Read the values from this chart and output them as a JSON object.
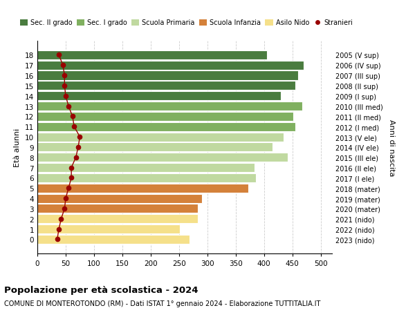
{
  "ages": [
    18,
    17,
    16,
    15,
    14,
    13,
    12,
    11,
    10,
    9,
    8,
    7,
    6,
    5,
    4,
    3,
    2,
    1,
    0
  ],
  "years": [
    "2005 (V sup)",
    "2006 (IV sup)",
    "2007 (III sup)",
    "2008 (II sup)",
    "2009 (I sup)",
    "2010 (III med)",
    "2011 (II med)",
    "2012 (I med)",
    "2013 (V ele)",
    "2014 (IV ele)",
    "2015 (III ele)",
    "2016 (II ele)",
    "2017 (I ele)",
    "2018 (mater)",
    "2019 (mater)",
    "2020 (mater)",
    "2021 (nido)",
    "2022 (nido)",
    "2023 (nido)"
  ],
  "bar_values": [
    405,
    470,
    460,
    455,
    430,
    468,
    452,
    455,
    435,
    415,
    442,
    383,
    386,
    372,
    290,
    283,
    283,
    252,
    268
  ],
  "bar_colors": [
    "#4a7c3f",
    "#4a7c3f",
    "#4a7c3f",
    "#4a7c3f",
    "#4a7c3f",
    "#80b060",
    "#80b060",
    "#80b060",
    "#c0d9a0",
    "#c0d9a0",
    "#c0d9a0",
    "#c0d9a0",
    "#c0d9a0",
    "#d4813a",
    "#d4813a",
    "#d4813a",
    "#f5e08a",
    "#f5e08a",
    "#f5e08a"
  ],
  "stranieri_values": [
    38,
    45,
    48,
    48,
    50,
    55,
    62,
    65,
    75,
    72,
    68,
    60,
    60,
    55,
    50,
    48,
    42,
    38,
    35
  ],
  "legend_labels": [
    "Sec. II grado",
    "Sec. I grado",
    "Scuola Primaria",
    "Scuola Infanzia",
    "Asilo Nido",
    "Stranieri"
  ],
  "legend_colors": [
    "#4a7c3f",
    "#80b060",
    "#c0d9a0",
    "#d4813a",
    "#f5e08a",
    "#990000"
  ],
  "title": "Popolazione per età scolastica - 2024",
  "subtitle": "COMUNE DI MONTEROTONDO (RM) - Dati ISTAT 1° gennaio 2024 - Elaborazione TUTTITALIA.IT",
  "ylabel_left": "Età alunni",
  "ylabel_right": "Anni di nascita",
  "xlim": [
    0,
    520
  ],
  "xticks": [
    0,
    50,
    100,
    150,
    200,
    250,
    300,
    350,
    400,
    450,
    500
  ],
  "bg_color": "#ffffff",
  "grid_color": "#cccccc",
  "bar_height": 0.88
}
